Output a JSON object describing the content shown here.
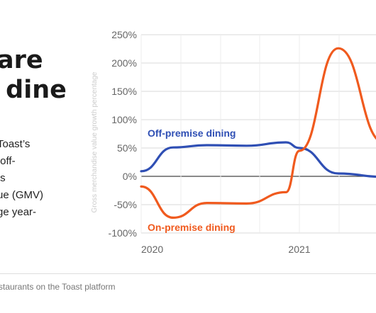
{
  "text": {
    "headline": "are\n dine",
    "body": "Toast’s\n off-\n s\nue (GMV)\nge year-",
    "source": "staurants on the Toast platform"
  },
  "colors": {
    "off_premise": "#2f4fb4",
    "on_premise": "#f05a1e",
    "grid": "#d9d9d9",
    "axis": "#444444"
  },
  "chart_data": {
    "type": "line",
    "ylabel": "Gross merchandise value growth percentage",
    "ylim": [
      -100,
      250
    ],
    "yticks": [
      250,
      200,
      150,
      100,
      50,
      0,
      -50,
      -100
    ],
    "ytick_labels": [
      "250%",
      "200%",
      "150%",
      "100%",
      "50%",
      "0%",
      "-50%",
      "-100%"
    ],
    "xlim": [
      "2020-01-01",
      "2021-07-15"
    ],
    "xticks": [
      "2020-01-01",
      "2021-01-01"
    ],
    "xtick_labels": [
      "2020",
      "2021"
    ],
    "grid": true,
    "series": [
      {
        "name": "Off-premise dining",
        "key": "off_premise",
        "x": [
          "2020-01-01",
          "2020-03-15",
          "2020-06-01",
          "2020-09-01",
          "2020-12-01",
          "2021-01-01",
          "2021-04-01",
          "2021-07-15"
        ],
        "values": [
          9,
          51,
          55,
          54,
          60,
          50,
          5,
          -1
        ]
      },
      {
        "name": "On-premise dining",
        "key": "on_premise",
        "x": [
          "2020-01-01",
          "2020-03-15",
          "2020-06-01",
          "2020-09-01",
          "2020-12-01",
          "2021-01-01",
          "2021-04-01",
          "2021-07-15"
        ],
        "values": [
          -18,
          -73,
          -47,
          -48,
          -28,
          45,
          226,
          60
        ]
      }
    ]
  }
}
